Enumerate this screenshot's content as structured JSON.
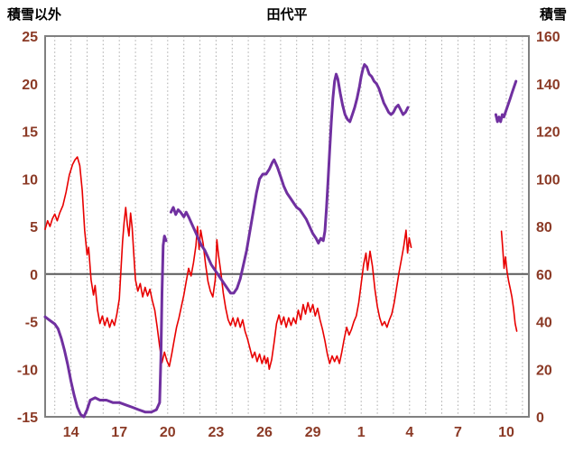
{
  "chart_data": {
    "type": "line",
    "title": "田代平",
    "left_axis": {
      "title": "積雪以外",
      "min": -15,
      "max": 25,
      "ticks": [
        25,
        20,
        15,
        10,
        5,
        0,
        -5,
        -10,
        -15
      ]
    },
    "right_axis": {
      "title": "積雪",
      "min": 0,
      "max": 160,
      "ticks": [
        160,
        140,
        120,
        100,
        80,
        60,
        40,
        20,
        0
      ]
    },
    "x_domain": [
      12.4,
      42.4
    ],
    "x_tick_positions": [
      14,
      17,
      20,
      23,
      26,
      29,
      32,
      35,
      38,
      41
    ],
    "x_tick_labels": [
      "14",
      "17",
      "20",
      "23",
      "26",
      "29",
      "1",
      "4",
      "7",
      "10"
    ],
    "grid": "vertical-dotted",
    "legend": "none",
    "colors": {
      "temperature": "#e80000",
      "snow": "#7030a0",
      "zero_line": "#595959",
      "grid": "#ababab",
      "border": "#808080",
      "axis_text": "#8b3a26",
      "title_text": "#000000"
    },
    "series": [
      {
        "name": "temperature",
        "axis": "left",
        "color": "#e80000",
        "width": 1.6,
        "points": [
          [
            12.4,
            4.7
          ],
          [
            12.55,
            5.6
          ],
          [
            12.7,
            5.0
          ],
          [
            12.85,
            5.8
          ],
          [
            13.0,
            6.3
          ],
          [
            13.15,
            5.6
          ],
          [
            13.3,
            6.4
          ],
          [
            13.5,
            7.2
          ],
          [
            13.7,
            8.6
          ],
          [
            13.9,
            10.4
          ],
          [
            14.1,
            11.5
          ],
          [
            14.25,
            12.0
          ],
          [
            14.4,
            12.3
          ],
          [
            14.55,
            11.4
          ],
          [
            14.7,
            8.8
          ],
          [
            14.85,
            4.6
          ],
          [
            15.0,
            2.0
          ],
          [
            15.1,
            2.8
          ],
          [
            15.25,
            -0.6
          ],
          [
            15.4,
            -2.2
          ],
          [
            15.5,
            -1.2
          ],
          [
            15.65,
            -3.8
          ],
          [
            15.8,
            -5.2
          ],
          [
            15.95,
            -4.4
          ],
          [
            16.1,
            -5.4
          ],
          [
            16.25,
            -4.6
          ],
          [
            16.4,
            -5.6
          ],
          [
            16.55,
            -4.8
          ],
          [
            16.7,
            -5.4
          ],
          [
            16.85,
            -4.2
          ],
          [
            17.0,
            -2.6
          ],
          [
            17.1,
            0.4
          ],
          [
            17.2,
            3.4
          ],
          [
            17.3,
            5.4
          ],
          [
            17.4,
            7.0
          ],
          [
            17.5,
            5.2
          ],
          [
            17.6,
            4.0
          ],
          [
            17.7,
            6.4
          ],
          [
            17.8,
            4.8
          ],
          [
            17.9,
            2.0
          ],
          [
            18.0,
            -0.6
          ],
          [
            18.15,
            -1.8
          ],
          [
            18.3,
            -1.0
          ],
          [
            18.45,
            -2.4
          ],
          [
            18.6,
            -1.4
          ],
          [
            18.75,
            -2.3
          ],
          [
            18.9,
            -1.6
          ],
          [
            19.05,
            -2.8
          ],
          [
            19.2,
            -3.8
          ],
          [
            19.35,
            -5.6
          ],
          [
            19.5,
            -7.6
          ],
          [
            19.65,
            -9.3
          ],
          [
            19.8,
            -8.2
          ],
          [
            19.95,
            -9.1
          ],
          [
            20.1,
            -9.7
          ],
          [
            20.25,
            -8.4
          ],
          [
            20.4,
            -7.0
          ],
          [
            20.55,
            -5.6
          ],
          [
            20.7,
            -4.6
          ],
          [
            20.85,
            -3.4
          ],
          [
            21.0,
            -2.2
          ],
          [
            21.15,
            -0.8
          ],
          [
            21.3,
            0.6
          ],
          [
            21.45,
            -0.2
          ],
          [
            21.6,
            1.2
          ],
          [
            21.75,
            3.0
          ],
          [
            21.85,
            5.0
          ],
          [
            21.95,
            2.6
          ],
          [
            22.05,
            4.6
          ],
          [
            22.2,
            3.2
          ],
          [
            22.35,
            1.0
          ],
          [
            22.5,
            -0.8
          ],
          [
            22.65,
            -1.8
          ],
          [
            22.8,
            -2.4
          ],
          [
            22.95,
            -0.6
          ],
          [
            23.05,
            3.6
          ],
          [
            23.15,
            2.0
          ],
          [
            23.3,
            0.2
          ],
          [
            23.45,
            -2.0
          ],
          [
            23.6,
            -3.6
          ],
          [
            23.75,
            -4.8
          ],
          [
            23.9,
            -5.4
          ],
          [
            24.05,
            -4.6
          ],
          [
            24.2,
            -5.5
          ],
          [
            24.35,
            -4.6
          ],
          [
            24.5,
            -5.6
          ],
          [
            24.65,
            -4.8
          ],
          [
            24.8,
            -6.0
          ],
          [
            24.95,
            -6.8
          ],
          [
            25.1,
            -7.8
          ],
          [
            25.25,
            -8.8
          ],
          [
            25.4,
            -8.2
          ],
          [
            25.55,
            -9.2
          ],
          [
            25.7,
            -8.4
          ],
          [
            25.85,
            -9.4
          ],
          [
            26.0,
            -8.6
          ],
          [
            26.1,
            -9.4
          ],
          [
            26.2,
            -8.8
          ],
          [
            26.3,
            -10.0
          ],
          [
            26.45,
            -9.0
          ],
          [
            26.6,
            -7.2
          ],
          [
            26.75,
            -5.2
          ],
          [
            26.9,
            -4.3
          ],
          [
            27.05,
            -5.3
          ],
          [
            27.2,
            -4.5
          ],
          [
            27.35,
            -5.6
          ],
          [
            27.5,
            -4.6
          ],
          [
            27.65,
            -5.4
          ],
          [
            27.8,
            -4.6
          ],
          [
            27.95,
            -5.2
          ],
          [
            28.1,
            -3.8
          ],
          [
            28.25,
            -4.8
          ],
          [
            28.4,
            -3.2
          ],
          [
            28.55,
            -4.2
          ],
          [
            28.7,
            -3.0
          ],
          [
            28.85,
            -4.0
          ],
          [
            29.0,
            -3.2
          ],
          [
            29.15,
            -4.4
          ],
          [
            29.3,
            -3.6
          ],
          [
            29.45,
            -4.8
          ],
          [
            29.6,
            -5.8
          ],
          [
            29.75,
            -7.0
          ],
          [
            29.9,
            -8.4
          ],
          [
            30.05,
            -9.4
          ],
          [
            30.2,
            -8.6
          ],
          [
            30.35,
            -9.2
          ],
          [
            30.5,
            -8.6
          ],
          [
            30.65,
            -9.4
          ],
          [
            30.8,
            -8.2
          ],
          [
            30.95,
            -6.8
          ],
          [
            31.1,
            -5.6
          ],
          [
            31.25,
            -6.4
          ],
          [
            31.4,
            -5.8
          ],
          [
            31.55,
            -5.0
          ],
          [
            31.7,
            -4.4
          ],
          [
            31.85,
            -3.0
          ],
          [
            32.0,
            -1.0
          ],
          [
            32.15,
            1.0
          ],
          [
            32.3,
            2.2
          ],
          [
            32.4,
            0.4
          ],
          [
            32.55,
            2.4
          ],
          [
            32.7,
            0.8
          ],
          [
            32.85,
            -1.6
          ],
          [
            33.0,
            -3.4
          ],
          [
            33.15,
            -4.6
          ],
          [
            33.3,
            -5.4
          ],
          [
            33.45,
            -5.0
          ],
          [
            33.6,
            -5.6
          ],
          [
            33.75,
            -4.8
          ],
          [
            33.9,
            -4.2
          ],
          [
            34.05,
            -3.0
          ],
          [
            34.2,
            -1.4
          ],
          [
            34.35,
            0.2
          ],
          [
            34.5,
            1.6
          ],
          [
            34.65,
            3.0
          ],
          [
            34.78,
            4.6
          ],
          [
            34.88,
            2.2
          ],
          [
            34.98,
            3.8
          ],
          [
            35.1,
            2.8
          ],
          null,
          [
            40.7,
            4.5
          ],
          [
            40.78,
            2.6
          ],
          [
            40.86,
            0.6
          ],
          [
            40.95,
            1.8
          ],
          [
            41.05,
            0.2
          ],
          [
            41.15,
            -0.8
          ],
          [
            41.25,
            -1.6
          ],
          [
            41.35,
            -2.4
          ],
          [
            41.45,
            -3.6
          ],
          [
            41.55,
            -5.2
          ],
          [
            41.65,
            -6.0
          ]
        ]
      },
      {
        "name": "snow_depth",
        "axis": "right",
        "color": "#7030a0",
        "width": 3,
        "points": [
          [
            12.4,
            42
          ],
          [
            12.6,
            41
          ],
          [
            12.8,
            40
          ],
          [
            13.0,
            39
          ],
          [
            13.2,
            37
          ],
          [
            13.4,
            33
          ],
          [
            13.6,
            28
          ],
          [
            13.8,
            22
          ],
          [
            14.0,
            15
          ],
          [
            14.2,
            9
          ],
          [
            14.4,
            4
          ],
          [
            14.6,
            1
          ],
          [
            14.8,
            0
          ],
          [
            15.0,
            3
          ],
          [
            15.2,
            7
          ],
          [
            15.5,
            8
          ],
          [
            15.8,
            7
          ],
          [
            16.2,
            7
          ],
          [
            16.6,
            6
          ],
          [
            17.0,
            6
          ],
          [
            17.4,
            5
          ],
          [
            17.8,
            4
          ],
          [
            18.2,
            3
          ],
          [
            18.6,
            2
          ],
          [
            19.0,
            2
          ],
          [
            19.3,
            3
          ],
          [
            19.5,
            6
          ],
          [
            19.58,
            25
          ],
          [
            19.65,
            52
          ],
          [
            19.72,
            72
          ],
          [
            19.8,
            76
          ],
          [
            19.9,
            74
          ],
          null,
          [
            20.2,
            86
          ],
          [
            20.35,
            88
          ],
          [
            20.5,
            85
          ],
          [
            20.65,
            87
          ],
          [
            20.8,
            86
          ],
          [
            21.0,
            84
          ],
          [
            21.15,
            86
          ],
          [
            21.3,
            84
          ],
          [
            21.5,
            81
          ],
          [
            21.7,
            78
          ],
          [
            21.9,
            75
          ],
          [
            22.1,
            72
          ],
          [
            22.3,
            70
          ],
          [
            22.5,
            67
          ],
          [
            22.7,
            64
          ],
          [
            22.9,
            62
          ],
          [
            23.1,
            60
          ],
          [
            23.3,
            58
          ],
          [
            23.5,
            56
          ],
          [
            23.7,
            54
          ],
          [
            23.9,
            52
          ],
          [
            24.1,
            52
          ],
          [
            24.3,
            54
          ],
          [
            24.5,
            58
          ],
          [
            24.7,
            64
          ],
          [
            24.9,
            70
          ],
          [
            25.1,
            78
          ],
          [
            25.3,
            86
          ],
          [
            25.5,
            94
          ],
          [
            25.7,
            100
          ],
          [
            25.9,
            102
          ],
          [
            26.1,
            102
          ],
          [
            26.3,
            104
          ],
          [
            26.5,
            107
          ],
          [
            26.6,
            108
          ],
          [
            26.8,
            105
          ],
          [
            27.0,
            101
          ],
          [
            27.2,
            97
          ],
          [
            27.4,
            94
          ],
          [
            27.6,
            92
          ],
          [
            27.8,
            90
          ],
          [
            28.0,
            88
          ],
          [
            28.2,
            87
          ],
          [
            28.4,
            85
          ],
          [
            28.6,
            83
          ],
          [
            28.8,
            80
          ],
          [
            29.0,
            77
          ],
          [
            29.2,
            75
          ],
          [
            29.35,
            73
          ],
          [
            29.5,
            75
          ],
          [
            29.65,
            74
          ],
          [
            29.75,
            78
          ],
          [
            29.85,
            88
          ],
          [
            29.95,
            100
          ],
          [
            30.05,
            112
          ],
          [
            30.15,
            124
          ],
          [
            30.25,
            134
          ],
          [
            30.35,
            141
          ],
          [
            30.45,
            144
          ],
          [
            30.55,
            142
          ],
          [
            30.7,
            136
          ],
          [
            30.85,
            131
          ],
          [
            31.0,
            127
          ],
          [
            31.15,
            125
          ],
          [
            31.3,
            124
          ],
          [
            31.45,
            127
          ],
          [
            31.6,
            130
          ],
          [
            31.75,
            134
          ],
          [
            31.9,
            139
          ],
          [
            32.0,
            143
          ],
          [
            32.1,
            146
          ],
          [
            32.2,
            148
          ],
          [
            32.35,
            147
          ],
          [
            32.5,
            144
          ],
          [
            32.65,
            143
          ],
          [
            32.8,
            141
          ],
          [
            32.95,
            140
          ],
          [
            33.1,
            138
          ],
          [
            33.25,
            135
          ],
          [
            33.4,
            132
          ],
          [
            33.55,
            130
          ],
          [
            33.7,
            128
          ],
          [
            33.85,
            127
          ],
          [
            34.0,
            128
          ],
          [
            34.15,
            130
          ],
          [
            34.3,
            131
          ],
          [
            34.45,
            129
          ],
          [
            34.6,
            127
          ],
          [
            34.75,
            128
          ],
          [
            34.9,
            130
          ],
          null,
          [
            40.35,
            127
          ],
          [
            40.45,
            124
          ],
          [
            40.55,
            126
          ],
          [
            40.65,
            124
          ],
          [
            40.75,
            127
          ],
          [
            40.85,
            126
          ],
          [
            40.95,
            128
          ],
          [
            41.05,
            130
          ],
          [
            41.15,
            132
          ],
          [
            41.25,
            134
          ],
          [
            41.35,
            136
          ],
          [
            41.45,
            138
          ],
          [
            41.6,
            141
          ]
        ]
      }
    ]
  }
}
